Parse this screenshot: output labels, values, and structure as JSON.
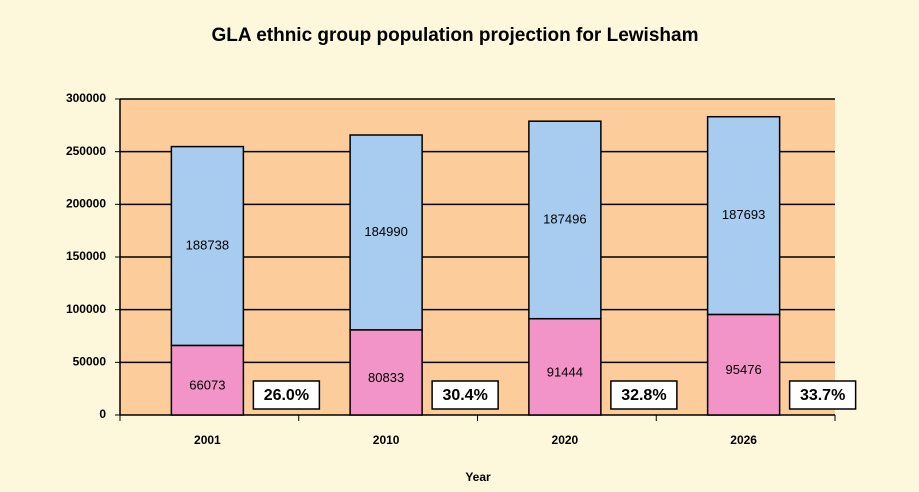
{
  "chart_data": {
    "type": "stacked-bar",
    "title": "GLA ethnic group population projection for Lewisham",
    "x_label": "Year",
    "categories": [
      "2001",
      "2010",
      "2020",
      "2026"
    ],
    "series": [
      {
        "color": "#f294c8",
        "values": [
          66073,
          80833,
          91444,
          95476
        ]
      },
      {
        "color": "#a8ccf0",
        "values": [
          188738,
          184990,
          187496,
          187693
        ]
      }
    ],
    "annotations": [
      "26.0%",
      "30.4%",
      "32.8%",
      "33.7%"
    ],
    "ylim": [
      0,
      300000
    ],
    "yticks": [
      0,
      50000,
      100000,
      150000,
      200000,
      250000,
      300000
    ],
    "grid": true
  }
}
